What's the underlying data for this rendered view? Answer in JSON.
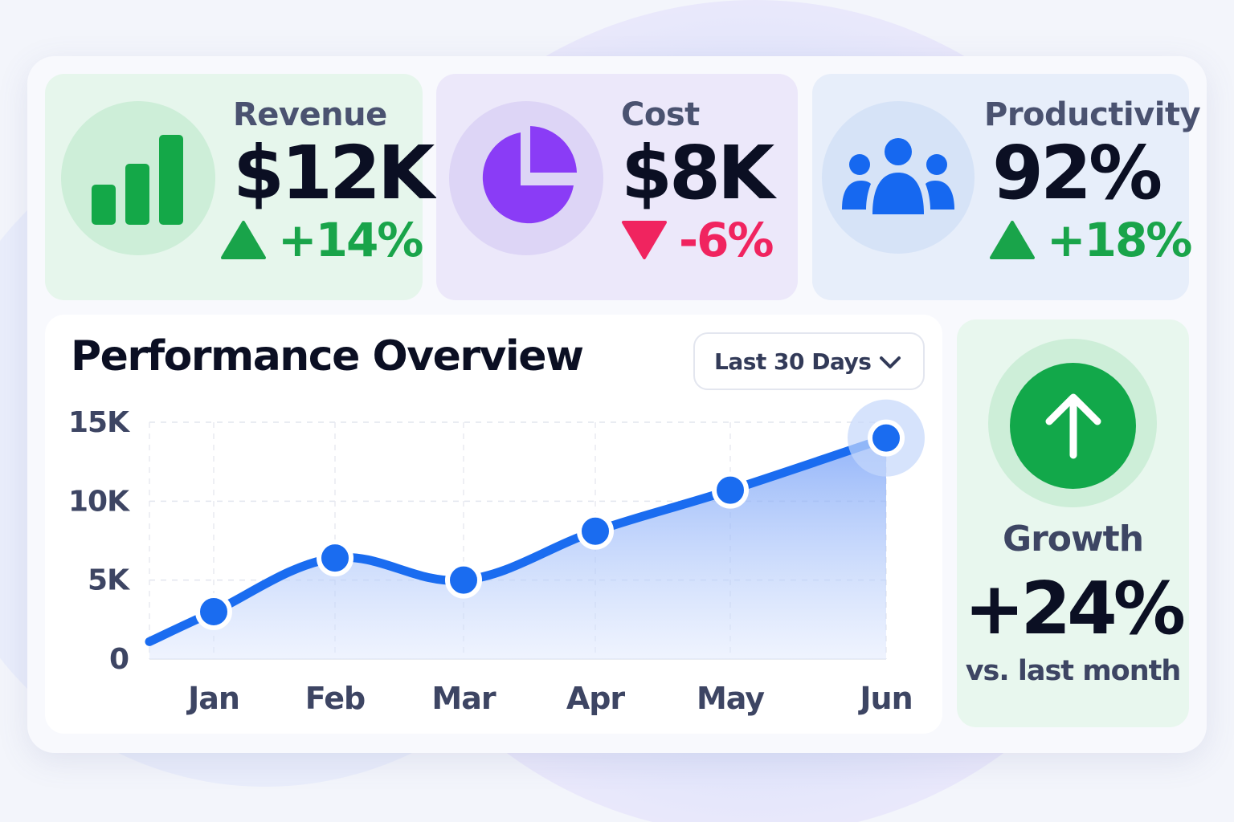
{
  "kpis": {
    "revenue": {
      "label": "Revenue",
      "value": "$12K",
      "change": "+14%",
      "direction": "up",
      "icon": "bar-chart-icon",
      "color": "#14a848"
    },
    "cost": {
      "label": "Cost",
      "value": "$8K",
      "change": "-6%",
      "direction": "down",
      "icon": "pie-chart-icon",
      "color": "#8a3cf6"
    },
    "productivity": {
      "label": "Productivity",
      "value": "92%",
      "change": "+18%",
      "direction": "up",
      "icon": "users-icon",
      "color": "#1668f0"
    }
  },
  "overview": {
    "title": "Performance Overview",
    "range": {
      "selected": "Last 30 Days",
      "icon": "chevron-down-icon"
    }
  },
  "growth": {
    "label": "Growth",
    "value": "+24%",
    "note": "vs. last month",
    "icon": "arrow-up-icon"
  },
  "colors": {
    "up": "#19a44a",
    "down": "#f0245f",
    "line": "#1a6cf0",
    "text": "#0b0f23"
  },
  "chart_data": {
    "type": "area",
    "categories": [
      "Jan",
      "Feb",
      "Mar",
      "Apr",
      "May",
      "Jun"
    ],
    "series": [
      {
        "values": [
          3000,
          6400,
          5000,
          8100,
          10700,
          14000
        ]
      }
    ],
    "start_value": 1100,
    "y_ticks": [
      "0",
      "5K",
      "10K",
      "15K"
    ],
    "ylim": [
      0,
      15000
    ],
    "grid": true
  }
}
